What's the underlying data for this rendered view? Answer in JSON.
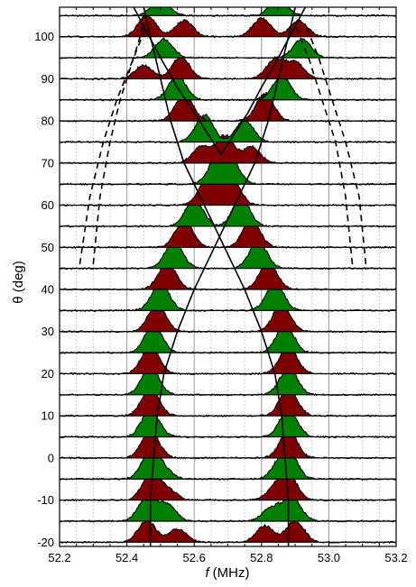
{
  "chart_data": {
    "type": "line",
    "title": "",
    "xlabel_italic": "f",
    "xlabel_unit": "(MHz)",
    "ylabel": "θ (deg)",
    "xlim": [
      52.2,
      53.2
    ],
    "ylim": [
      -21,
      107
    ],
    "x_ticks": [
      52.2,
      52.4,
      52.6,
      52.8,
      53.0,
      53.2
    ],
    "x_tick_labels": [
      "52.2",
      "52.4",
      "52.6",
      "52.8",
      "53.0",
      "53.2"
    ],
    "y_ticks": [
      -20,
      -10,
      0,
      10,
      20,
      30,
      40,
      50,
      60,
      70,
      80,
      90,
      100
    ],
    "y_tick_labels": [
      "-20",
      "-10",
      "0",
      "10",
      "20",
      "30",
      "40",
      "50",
      "60",
      "70",
      "80",
      "90",
      "100"
    ],
    "grid": true,
    "trace_angles": [
      -20,
      -15,
      -10,
      -5,
      0,
      5,
      10,
      15,
      20,
      25,
      30,
      35,
      40,
      45,
      50,
      55,
      60,
      65,
      70,
      75,
      80,
      85,
      90,
      95,
      100,
      105
    ],
    "fill_colors": [
      "#7f0000",
      "#008000"
    ],
    "peaks": [
      [
        [
          52.46,
          0.8
        ],
        [
          52.55,
          0.5
        ],
        [
          52.81,
          0.6
        ],
        [
          52.9,
          0.8
        ]
      ],
      [
        [
          52.46,
          0.9
        ],
        [
          52.52,
          0.6
        ],
        [
          52.83,
          0.5
        ],
        [
          52.89,
          0.9
        ]
      ],
      [
        [
          52.47,
          0.9
        ],
        [
          52.52,
          0.4
        ],
        [
          52.84,
          0.4
        ],
        [
          52.88,
          0.9
        ]
      ],
      [
        [
          52.47,
          1.0
        ],
        [
          52.51,
          0.3
        ],
        [
          52.85,
          0.3
        ],
        [
          52.88,
          1.0
        ]
      ],
      [
        [
          52.47,
          1.0
        ],
        [
          52.88,
          1.0
        ]
      ],
      [
        [
          52.47,
          1.0
        ],
        [
          52.88,
          1.0
        ]
      ],
      [
        [
          52.47,
          1.0
        ],
        [
          52.88,
          1.0
        ]
      ],
      [
        [
          52.47,
          1.0
        ],
        [
          52.88,
          1.0
        ]
      ],
      [
        [
          52.47,
          1.0
        ],
        [
          52.88,
          1.0
        ]
      ],
      [
        [
          52.48,
          1.0
        ],
        [
          52.87,
          1.0
        ]
      ],
      [
        [
          52.49,
          1.0
        ],
        [
          52.86,
          1.0
        ]
      ],
      [
        [
          52.5,
          1.0
        ],
        [
          52.84,
          1.0
        ]
      ],
      [
        [
          52.52,
          1.0
        ],
        [
          52.82,
          1.0
        ]
      ],
      [
        [
          52.54,
          1.0
        ],
        [
          52.79,
          1.0
        ]
      ],
      [
        [
          52.57,
          1.0
        ],
        [
          52.77,
          1.0
        ]
      ],
      [
        [
          52.6,
          1.0
        ],
        [
          52.74,
          1.0
        ]
      ],
      [
        [
          52.64,
          1.0
        ],
        [
          52.71,
          1.0
        ]
      ],
      [
        [
          52.67,
          1.0
        ],
        [
          52.71,
          0.8
        ]
      ],
      [
        [
          52.69,
          1.0
        ],
        [
          52.62,
          0.6
        ],
        [
          52.77,
          0.6
        ]
      ],
      [
        [
          52.63,
          1.0
        ],
        [
          52.75,
          0.8
        ]
      ],
      [
        [
          52.57,
          1.0
        ],
        [
          52.81,
          1.0
        ]
      ],
      [
        [
          52.55,
          0.9
        ],
        [
          52.86,
          0.9
        ]
      ],
      [
        [
          52.56,
          0.8
        ],
        [
          52.45,
          0.5
        ],
        [
          52.84,
          0.7
        ],
        [
          52.9,
          0.6
        ]
      ],
      [
        [
          52.51,
          0.7
        ],
        [
          52.92,
          0.7
        ]
      ],
      [
        [
          52.46,
          0.8
        ],
        [
          52.57,
          0.6
        ],
        [
          52.8,
          0.7
        ],
        [
          52.91,
          0.6
        ]
      ],
      [
        [
          52.5,
          0.6
        ],
        [
          52.85,
          0.6
        ]
      ]
    ],
    "solid_curves": [
      {
        "x": [
          52.47,
          52.47,
          52.48,
          52.49,
          52.51,
          52.55,
          52.6,
          52.66,
          52.72,
          52.78,
          52.82,
          52.85,
          52.88,
          52.9
        ],
        "y": [
          -21,
          -10,
          0,
          10,
          20,
          30,
          40,
          50,
          60,
          70,
          80,
          90,
          100,
          107
        ]
      },
      {
        "x": [
          52.88,
          52.88,
          52.87,
          52.86,
          52.84,
          52.8,
          52.75,
          52.69,
          52.63,
          52.57,
          52.53,
          52.5,
          52.47,
          52.45
        ],
        "y": [
          -21,
          -10,
          0,
          10,
          20,
          30,
          40,
          50,
          60,
          70,
          80,
          90,
          100,
          107
        ]
      },
      {
        "x": [
          52.68,
          52.64,
          52.6,
          52.55,
          52.5,
          52.46,
          52.42
        ],
        "y": [
          72,
          77,
          82,
          88,
          95,
          101,
          107
        ]
      },
      {
        "x": [
          52.68,
          52.72,
          52.76,
          52.8,
          52.85,
          52.89,
          52.93
        ],
        "y": [
          72,
          77,
          82,
          88,
          95,
          101,
          107
        ]
      }
    ],
    "dashed_curves": [
      {
        "x": [
          52.26,
          52.29,
          52.33,
          52.37,
          52.42,
          52.46
        ],
        "y": [
          46,
          62,
          75,
          85,
          95,
          103
        ]
      },
      {
        "x": [
          52.3,
          52.32,
          52.35,
          52.38,
          52.42,
          52.45
        ],
        "y": [
          46,
          62,
          75,
          85,
          95,
          103
        ]
      },
      {
        "x": [
          53.07,
          53.05,
          53.02,
          52.98,
          52.94,
          52.9
        ],
        "y": [
          46,
          62,
          75,
          85,
          95,
          103
        ]
      },
      {
        "x": [
          53.11,
          53.09,
          53.05,
          53.01,
          52.97,
          52.93
        ],
        "y": [
          46,
          62,
          75,
          85,
          95,
          103
        ]
      }
    ]
  }
}
